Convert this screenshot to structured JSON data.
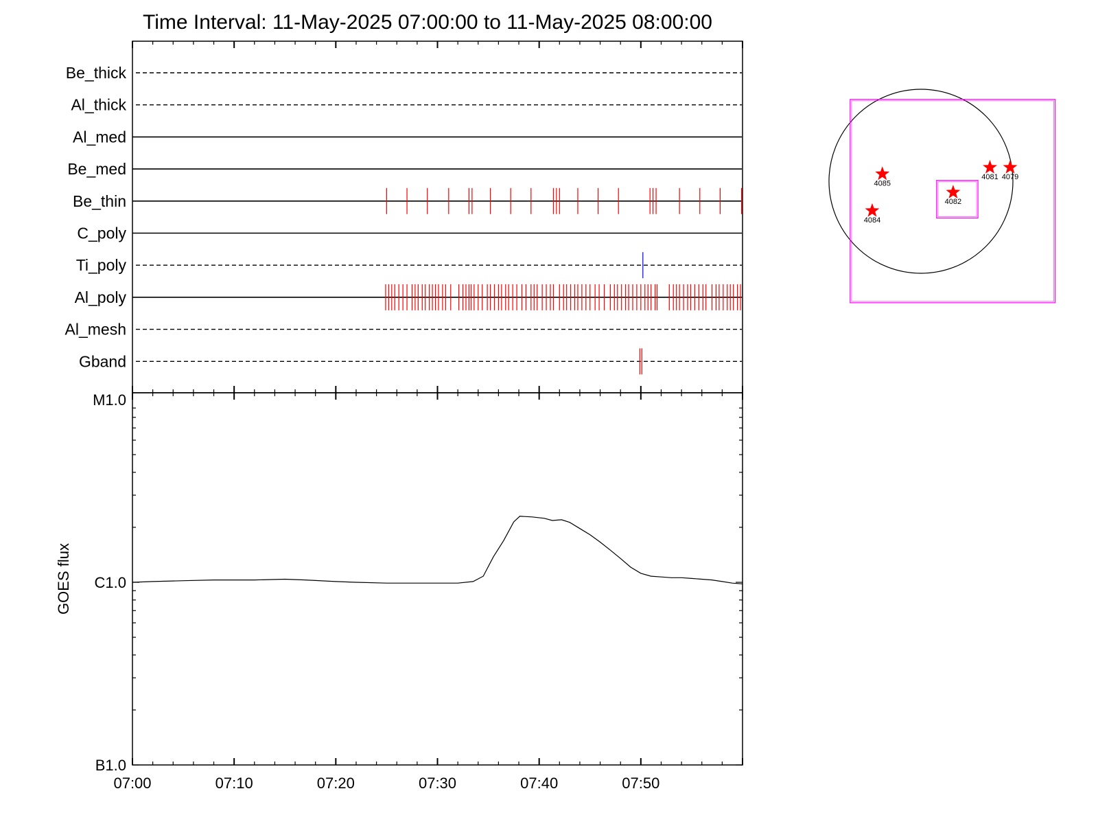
{
  "chart_data": [
    {
      "type": "timeline",
      "title": "Time Interval: 11-May-2025 07:00:00 to 11-May-2025 08:00:00",
      "x_unit": "minutes after 07:00",
      "xlim": [
        0,
        60
      ],
      "rows": [
        {
          "name": "Be_thick",
          "baseline": "dashed",
          "events": [],
          "event_color": "#ff0000"
        },
        {
          "name": "Al_thick",
          "baseline": "dashed",
          "events": [],
          "event_color": "#ff0000"
        },
        {
          "name": "Al_med",
          "baseline": "solid",
          "events": [],
          "event_color": "#ff0000"
        },
        {
          "name": "Be_med",
          "baseline": "solid",
          "events": [],
          "event_color": "#ff0000"
        },
        {
          "name": "Be_thin",
          "baseline": "solid",
          "event_color": "#ff0000",
          "events": [
            25.0,
            27.0,
            29.0,
            31.1,
            33.1,
            33.4,
            35.2,
            37.2,
            39.2,
            41.4,
            41.7,
            42.0,
            43.8,
            45.8,
            47.8,
            50.9,
            51.2,
            51.5,
            53.8,
            55.8,
            57.8,
            59.9
          ]
        },
        {
          "name": "C_poly",
          "baseline": "solid",
          "events": [],
          "event_color": "#ff0000"
        },
        {
          "name": "Ti_poly",
          "baseline": "dashed",
          "event_color": "#0000ff",
          "events": [
            50.2
          ]
        },
        {
          "name": "Al_poly",
          "baseline": "solid",
          "event_color": "#ff0000",
          "events": [
            24.9,
            25.2,
            25.5,
            25.8,
            26.2,
            26.6,
            27.0,
            27.5,
            27.8,
            28.1,
            28.5,
            28.8,
            29.2,
            29.5,
            29.8,
            30.1,
            30.5,
            30.8,
            31.3,
            32.1,
            32.5,
            32.8,
            33.1,
            33.3,
            33.6,
            34.0,
            34.4,
            34.9,
            35.2,
            35.6,
            36.0,
            36.3,
            36.7,
            37.0,
            37.4,
            37.8,
            38.3,
            38.7,
            39.2,
            39.5,
            39.8,
            40.3,
            40.7,
            41.1,
            41.4,
            42.0,
            42.4,
            42.7,
            43.1,
            43.5,
            43.8,
            44.2,
            44.6,
            45.0,
            45.5,
            45.9,
            46.4,
            47.0,
            47.4,
            47.7,
            48.1,
            48.5,
            48.8,
            49.2,
            49.6,
            50.0,
            50.4,
            50.7,
            51.0,
            51.4,
            51.6,
            52.8,
            53.2,
            53.5,
            53.8,
            54.2,
            54.6,
            54.9,
            55.3,
            55.7,
            56.1,
            56.4,
            57.0,
            57.4,
            57.7,
            58.1,
            58.5,
            58.8,
            59.1,
            59.5,
            59.8
          ]
        },
        {
          "name": "Al_mesh",
          "baseline": "dashed",
          "events": [],
          "event_color": "#ff0000"
        },
        {
          "name": "Gband",
          "baseline": "dashed",
          "event_color": "#ff0000",
          "events": [
            49.9,
            50.1
          ]
        }
      ]
    },
    {
      "type": "line",
      "ylabel": "GOES flux",
      "yscale": "log",
      "ylim": [
        1e-07,
        1e-05
      ],
      "y_ticks": [
        {
          "value": 1e-05,
          "label": "M1.0"
        },
        {
          "value": 1e-06,
          "label": "C1.0"
        },
        {
          "value": 1e-07,
          "label": "B1.0"
        }
      ],
      "x_unit": "minutes after 07:00",
      "xlim": [
        0,
        60
      ],
      "x_ticks": [
        {
          "value": 0,
          "label": "07:00"
        },
        {
          "value": 10,
          "label": "07:10"
        },
        {
          "value": 20,
          "label": "07:20"
        },
        {
          "value": 30,
          "label": "07:30"
        },
        {
          "value": 40,
          "label": "07:40"
        },
        {
          "value": 50,
          "label": "07:50"
        }
      ],
      "line_color": "#000000",
      "series": [
        {
          "x": [
            0,
            2,
            5,
            8,
            10,
            12,
            15,
            17,
            20,
            22,
            25,
            28,
            30,
            32,
            33.5,
            34.5,
            35.5,
            36.5,
            37.5,
            38.1,
            39.3,
            40.5,
            41.3,
            42.2,
            43,
            44,
            45,
            46,
            47,
            48,
            49,
            50,
            51,
            52,
            53,
            54,
            55,
            56,
            57,
            58,
            59,
            60
          ],
          "y": [
            1e-06,
            1.01e-06,
            1.02e-06,
            1.03e-06,
            1.03e-06,
            1.03e-06,
            1.04e-06,
            1.03e-06,
            1.01e-06,
            1e-06,
            9.9e-07,
            9.9e-07,
            9.9e-07,
            9.9e-07,
            1.01e-06,
            1.08e-06,
            1.38e-06,
            1.69e-06,
            2.14e-06,
            2.3e-06,
            2.28e-06,
            2.24e-06,
            2.18e-06,
            2.2e-06,
            2.13e-06,
            1.97e-06,
            1.82e-06,
            1.66e-06,
            1.5e-06,
            1.35e-06,
            1.21e-06,
            1.12e-06,
            1.08e-06,
            1.07e-06,
            1.06e-06,
            1.06e-06,
            1.05e-06,
            1.04e-06,
            1.03e-06,
            1.01e-06,
            9.9e-07,
            9.8e-07
          ]
        }
      ]
    },
    {
      "type": "scatter",
      "units": "solar radii",
      "xlim": [
        -1.1,
        1.1
      ],
      "ylim": [
        -1.1,
        1.1
      ],
      "disk_color": "#000000",
      "box_color": "#ff00ff",
      "marker_color": "#ff0000",
      "regions": [
        {
          "label": "4085",
          "x": -0.42,
          "y": 0.08
        },
        {
          "label": "4084",
          "x": -0.53,
          "y": -0.32
        },
        {
          "label": "4082",
          "x": 0.35,
          "y": -0.12
        },
        {
          "label": "4081",
          "x": 0.75,
          "y": 0.15
        },
        {
          "label": "4079",
          "x": 0.97,
          "y": 0.15
        }
      ],
      "fov_boxes": [
        {
          "x_range": [
            -0.77,
            1.46
          ],
          "y_range": [
            -1.32,
            0.89
          ]
        },
        {
          "x_range": [
            0.17,
            0.62
          ],
          "y_range": [
            -0.4,
            0.01
          ]
        }
      ]
    }
  ]
}
